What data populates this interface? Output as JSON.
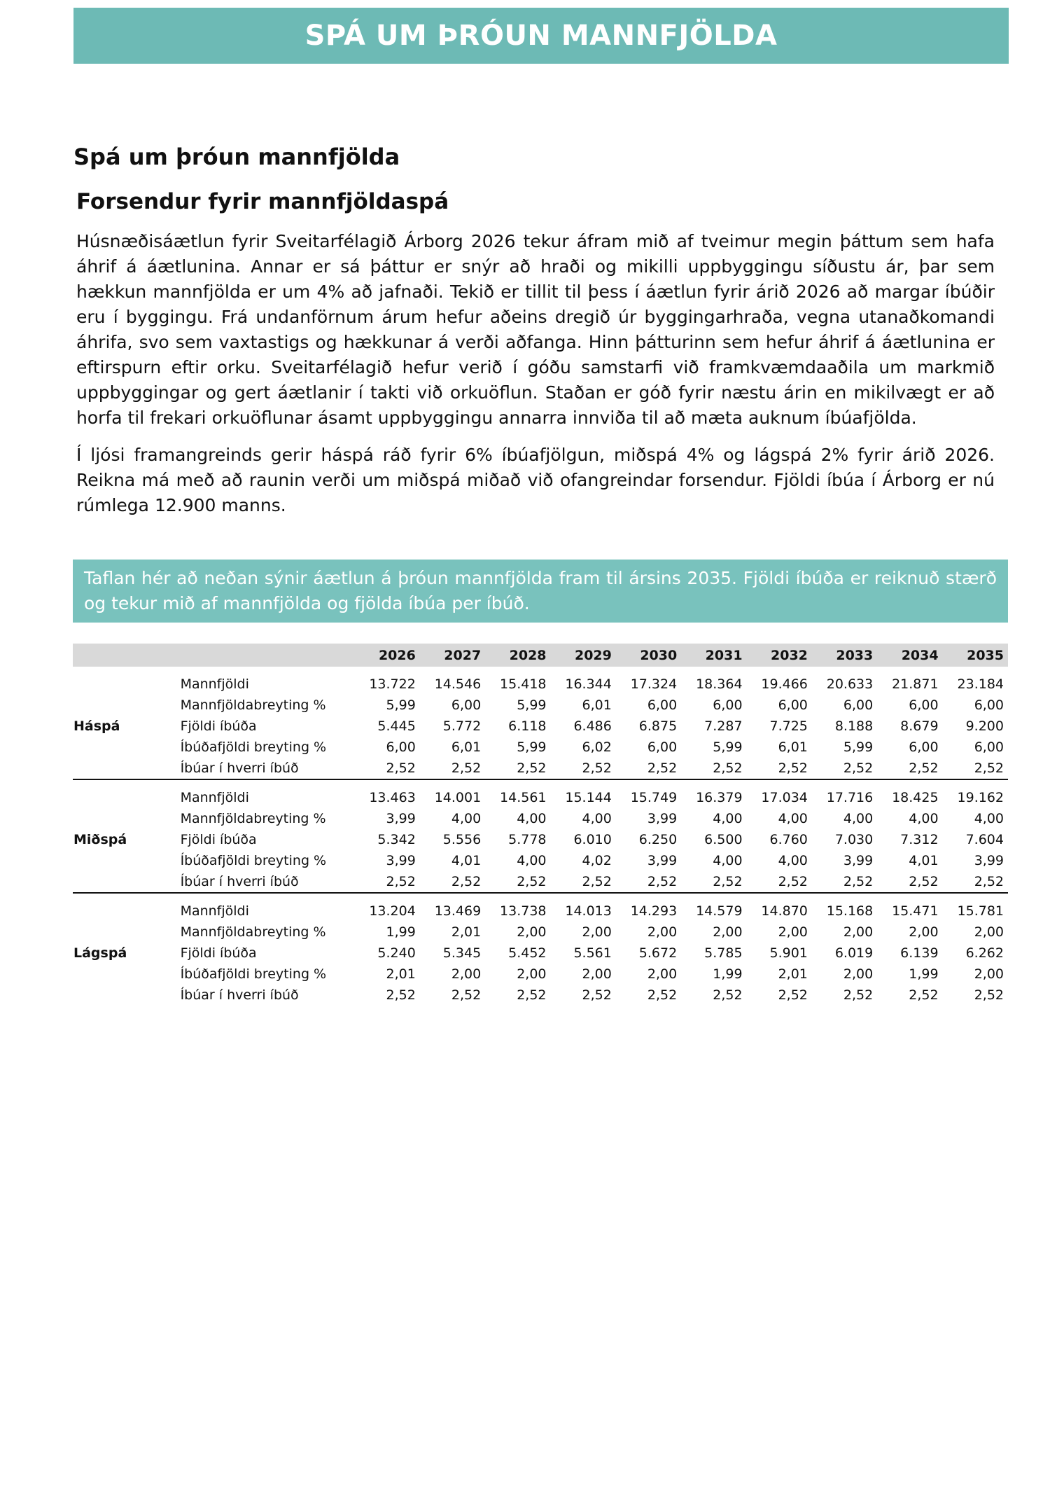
{
  "banner": {
    "title": "SPÁ UM ÞRÓUN MANNFJÖLDA"
  },
  "heading1": "Spá um þróun mannfjölda",
  "heading2": "Forsendur fyrir mannfjöldaspá",
  "paragraphs": [
    "Húsnæðisáætlun fyrir Sveitarfélagið Árborg 2026 tekur áfram mið af tveimur megin þáttum sem hafa áhrif á áætlunina. Annar er sá þáttur er snýr að hraði og mikilli uppbyggingu síðustu ár, þar sem hækkun mannfjölda er um 4% að jafnaði. Tekið er tillit til þess í áætlun fyrir árið 2026 að margar íbúðir eru í byggingu. Frá undanförnum árum hefur aðeins dregið úr byggingarhraða, vegna utanaðkomandi áhrifa, svo sem vaxtastigs og hækkunar á verði aðfanga. Hinn þátturinn sem hefur áhrif á áætlunina er eftirspurn eftir orku. Sveitarfélagið hefur verið í góðu samstarfi við framkvæmdaaðila um markmið uppbyggingar og gert áætlanir í takti við orkuöflun. Staðan er góð fyrir næstu árin en mikilvægt er að horfa til frekari orkuöflunar ásamt uppbyggingu annarra innviða til að mæta auknum íbúafjölda.",
    "Í ljósi framangreinds gerir háspá ráð fyrir 6% íbúafjölgun, miðspá 4% og lágspá 2% fyrir árið 2026. Reikna má með að raunin verði um miðspá miðað við ofangreindar forsendur. Fjöldi íbúa í Árborg er nú rúmlega 12.900 manns."
  ],
  "table_note": "Taflan hér að neðan sýnir áætlun á þróun mannfjölda fram til ársins 2035. Fjöldi íbúða er reiknuð stærð og tekur mið af mannfjölda og fjölda íbúa per íbúð.",
  "colors": {
    "banner": "#6dbab5",
    "note_box": "#79c2bd",
    "header_row": "#d9d9d9"
  },
  "table": {
    "years": [
      "2026",
      "2027",
      "2028",
      "2029",
      "2030",
      "2031",
      "2032",
      "2033",
      "2034",
      "2035"
    ],
    "groups": [
      {
        "name": "Háspá",
        "rows": [
          {
            "label": "Mannfjöldi",
            "values": [
              "13.722",
              "14.546",
              "15.418",
              "16.344",
              "17.324",
              "18.364",
              "19.466",
              "20.633",
              "21.871",
              "23.184"
            ]
          },
          {
            "label": "Mannfjöldabreyting %",
            "values": [
              "5,99",
              "6,00",
              "5,99",
              "6,01",
              "6,00",
              "6,00",
              "6,00",
              "6,00",
              "6,00",
              "6,00"
            ]
          },
          {
            "label": "Fjöldi íbúða",
            "values": [
              "5.445",
              "5.772",
              "6.118",
              "6.486",
              "6.875",
              "7.287",
              "7.725",
              "8.188",
              "8.679",
              "9.200"
            ]
          },
          {
            "label": "Íbúðafjöldi breyting %",
            "values": [
              "6,00",
              "6,01",
              "5,99",
              "6,02",
              "6,00",
              "5,99",
              "6,01",
              "5,99",
              "6,00",
              "6,00"
            ]
          },
          {
            "label": "Íbúar í hverri íbúð",
            "values": [
              "2,52",
              "2,52",
              "2,52",
              "2,52",
              "2,52",
              "2,52",
              "2,52",
              "2,52",
              "2,52",
              "2,52"
            ]
          }
        ]
      },
      {
        "name": "Miðspá",
        "rows": [
          {
            "label": "Mannfjöldi",
            "values": [
              "13.463",
              "14.001",
              "14.561",
              "15.144",
              "15.749",
              "16.379",
              "17.034",
              "17.716",
              "18.425",
              "19.162"
            ]
          },
          {
            "label": "Mannfjöldabreyting %",
            "values": [
              "3,99",
              "4,00",
              "4,00",
              "4,00",
              "3,99",
              "4,00",
              "4,00",
              "4,00",
              "4,00",
              "4,00"
            ]
          },
          {
            "label": "Fjöldi íbúða",
            "values": [
              "5.342",
              "5.556",
              "5.778",
              "6.010",
              "6.250",
              "6.500",
              "6.760",
              "7.030",
              "7.312",
              "7.604"
            ]
          },
          {
            "label": "Íbúðafjöldi breyting %",
            "values": [
              "3,99",
              "4,01",
              "4,00",
              "4,02",
              "3,99",
              "4,00",
              "4,00",
              "3,99",
              "4,01",
              "3,99"
            ]
          },
          {
            "label": "Íbúar í hverri íbúð",
            "values": [
              "2,52",
              "2,52",
              "2,52",
              "2,52",
              "2,52",
              "2,52",
              "2,52",
              "2,52",
              "2,52",
              "2,52"
            ]
          }
        ]
      },
      {
        "name": "Lágspá",
        "rows": [
          {
            "label": "Mannfjöldi",
            "values": [
              "13.204",
              "13.469",
              "13.738",
              "14.013",
              "14.293",
              "14.579",
              "14.870",
              "15.168",
              "15.471",
              "15.781"
            ]
          },
          {
            "label": "Mannfjöldabreyting %",
            "values": [
              "1,99",
              "2,01",
              "2,00",
              "2,00",
              "2,00",
              "2,00",
              "2,00",
              "2,00",
              "2,00",
              "2,00"
            ]
          },
          {
            "label": "Fjöldi íbúða",
            "values": [
              "5.240",
              "5.345",
              "5.452",
              "5.561",
              "5.672",
              "5.785",
              "5.901",
              "6.019",
              "6.139",
              "6.262"
            ]
          },
          {
            "label": "Íbúðafjöldi breyting %",
            "values": [
              "2,01",
              "2,00",
              "2,00",
              "2,00",
              "2,00",
              "1,99",
              "2,01",
              "2,00",
              "1,99",
              "2,00"
            ]
          },
          {
            "label": "Íbúar í hverri íbúð",
            "values": [
              "2,52",
              "2,52",
              "2,52",
              "2,52",
              "2,52",
              "2,52",
              "2,52",
              "2,52",
              "2,52",
              "2,52"
            ]
          }
        ]
      }
    ]
  }
}
